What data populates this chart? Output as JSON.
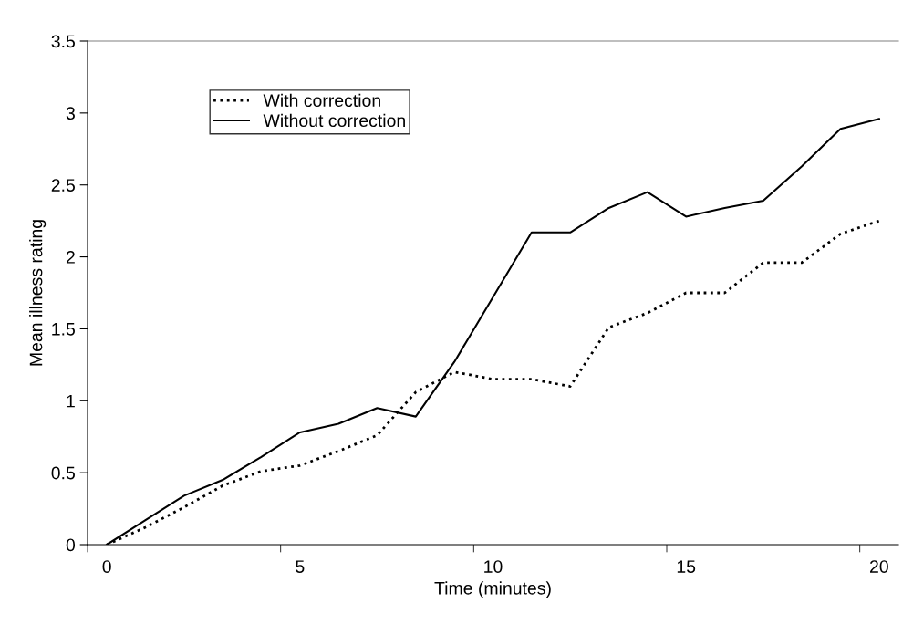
{
  "chart_data": {
    "type": "line",
    "xlabel": "Time (minutes)",
    "ylabel": "Mean illness rating",
    "categories": [
      "0",
      null,
      null,
      null,
      null,
      "5",
      null,
      null,
      null,
      null,
      "10",
      null,
      null,
      null,
      null,
      "15",
      null,
      null,
      null,
      null,
      "20"
    ],
    "series": [
      {
        "name": "With correction",
        "color": "#000000",
        "line_style": "dotted",
        "values": [
          0,
          0.12,
          0.26,
          0.41,
          0.51,
          0.55,
          0.65,
          0.76,
          1.06,
          1.2,
          1.15,
          1.15,
          1.1,
          1.51,
          1.61,
          1.75,
          1.75,
          1.96,
          1.96,
          2.16,
          2.25
        ]
      },
      {
        "name": "Without correction",
        "color": "#000000",
        "line_style": "solid",
        "values": [
          0,
          0.17,
          0.34,
          0.45,
          0.61,
          0.78,
          0.84,
          0.95,
          0.89,
          1.27,
          1.72,
          2.17,
          2.17,
          2.34,
          2.45,
          2.28,
          2.34,
          2.39,
          2.63,
          2.89,
          2.96
        ]
      }
    ],
    "ylim": [
      0,
      3.5
    ],
    "yticks": [
      0,
      0.5,
      1,
      1.5,
      2,
      2.5,
      3,
      3.5
    ],
    "grid": false,
    "legend": "top left",
    "marker": "none"
  }
}
